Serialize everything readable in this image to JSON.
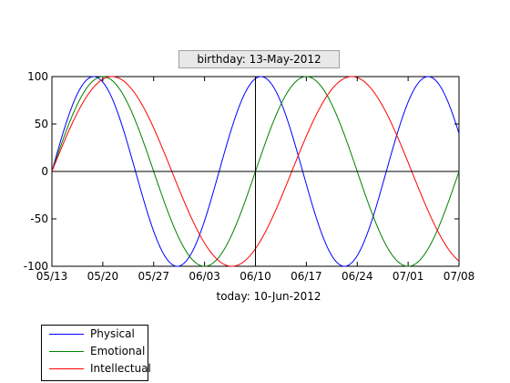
{
  "chart_data": {
    "type": "line",
    "title": "birthday: 13-May-2012",
    "xlabel": "today: 10-Jun-2012",
    "ylabel": "",
    "xlim": [
      "2012-05-13",
      "2012-07-08"
    ],
    "ylim": [
      -100,
      100
    ],
    "x_ticks": [
      {
        "date": "2012-05-13",
        "label": "05/13"
      },
      {
        "date": "2012-05-20",
        "label": "05/20"
      },
      {
        "date": "2012-05-27",
        "label": "05/27"
      },
      {
        "date": "2012-06-03",
        "label": "06/03"
      },
      {
        "date": "2012-06-10",
        "label": "06/10"
      },
      {
        "date": "2012-06-17",
        "label": "06/17"
      },
      {
        "date": "2012-06-24",
        "label": "06/24"
      },
      {
        "date": "2012-07-01",
        "label": "07/01"
      },
      {
        "date": "2012-07-08",
        "label": "07/08"
      }
    ],
    "y_ticks": [
      100,
      50,
      0,
      -50,
      -100
    ],
    "grid": false,
    "legend_position": "bottom-left outside",
    "reference_lines": {
      "horizontal": 0,
      "vertical": "2012-06-10"
    },
    "series": [
      {
        "name": "Physical",
        "color": "#0000ff",
        "period_days": 23
      },
      {
        "name": "Emotional",
        "color": "#008000",
        "period_days": 28
      },
      {
        "name": "Intellectual",
        "color": "#ff0000",
        "period_days": 33
      }
    ]
  }
}
